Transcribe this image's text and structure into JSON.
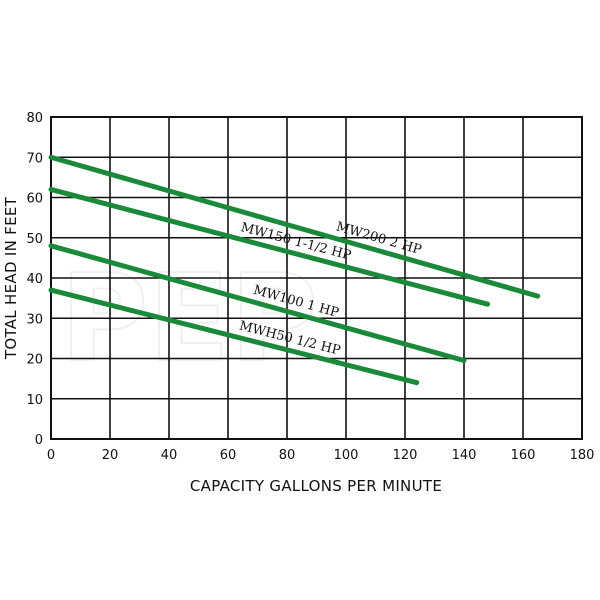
{
  "watermark_text": "PEP",
  "chart_data": {
    "type": "line",
    "title": "",
    "xlabel": "CAPACITY GALLONS PER MINUTE",
    "ylabel": "TOTAL HEAD IN FEET",
    "xlim": [
      0,
      180
    ],
    "ylim": [
      0,
      80
    ],
    "x_ticks": [
      0,
      20,
      40,
      60,
      80,
      100,
      120,
      140,
      160,
      180
    ],
    "y_ticks": [
      0,
      10,
      20,
      30,
      40,
      50,
      60,
      70,
      80
    ],
    "grid": true,
    "line_color": "#1a8a3a",
    "series": [
      {
        "name": "MW200 2 HP",
        "x": [
          0,
          165
        ],
        "y": [
          70,
          35.5
        ]
      },
      {
        "name": "MW150 1-1/2 HP",
        "x": [
          0,
          148
        ],
        "y": [
          62,
          33.5
        ]
      },
      {
        "name": "MW100 1 HP",
        "x": [
          0,
          140
        ],
        "y": [
          48,
          19.5
        ]
      },
      {
        "name": "MWH50 1/2 HP",
        "x": [
          0,
          124
        ],
        "y": [
          37,
          14
        ]
      }
    ]
  }
}
